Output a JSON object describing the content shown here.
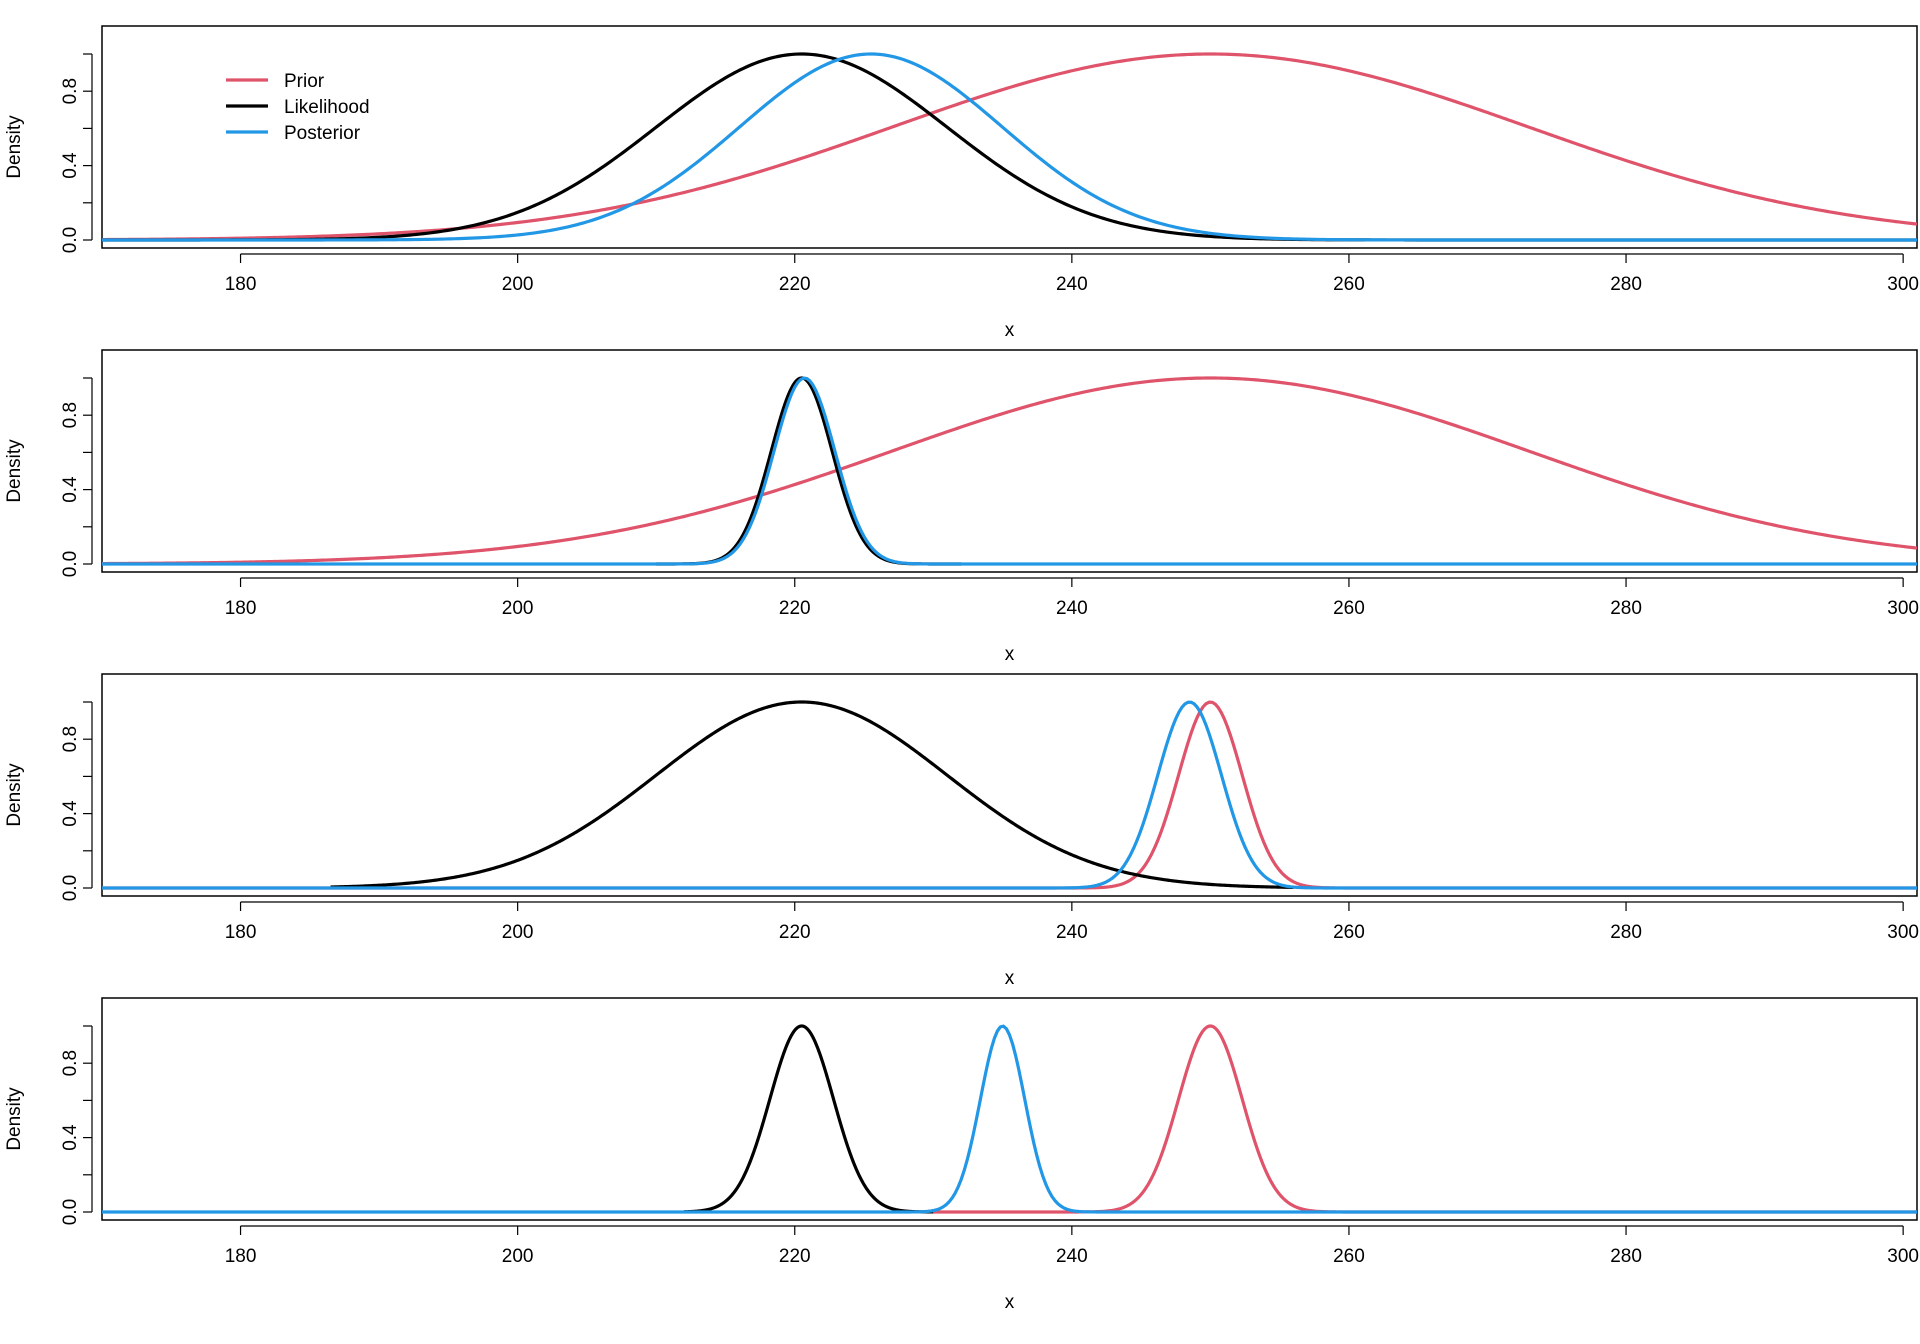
{
  "colors": {
    "prior": "#DF536B",
    "likelihood": "#000000",
    "posterior": "#2297E6"
  },
  "legend": [
    {
      "label": "Prior",
      "color_key": "prior"
    },
    {
      "label": "Likelihood",
      "color_key": "likelihood"
    },
    {
      "label": "Posterior",
      "color_key": "posterior"
    }
  ],
  "chart_data": [
    {
      "type": "line",
      "xlabel": "x",
      "ylabel": "Density",
      "xlim": [
        170,
        301
      ],
      "ylim": [
        0,
        1
      ],
      "xticks": [
        "180",
        "200",
        "220",
        "240",
        "260",
        "280",
        "300"
      ],
      "yticks": [
        "0.0",
        "0.4",
        "0.8"
      ],
      "legend_position": "top-left",
      "series": [
        {
          "name": "Prior",
          "curve": "normal",
          "mean": 250,
          "sd": 23,
          "peak": 1.0,
          "x_range": [
            170,
            301
          ]
        },
        {
          "name": "Likelihood",
          "curve": "normal",
          "mean": 220.5,
          "sd": 10.5,
          "peak": 1.0,
          "x_range": [
            170,
            301
          ]
        },
        {
          "name": "Posterior",
          "curve": "normal",
          "mean": 225.5,
          "sd": 9.5,
          "peak": 1.0,
          "x_range": [
            170,
            301
          ]
        }
      ]
    },
    {
      "type": "line",
      "xlabel": "x",
      "ylabel": "Density",
      "xlim": [
        170,
        301
      ],
      "ylim": [
        0,
        1
      ],
      "xticks": [
        "180",
        "200",
        "220",
        "240",
        "260",
        "280",
        "300"
      ],
      "yticks": [
        "0.0",
        "0.4",
        "0.8"
      ],
      "series": [
        {
          "name": "Prior",
          "curve": "normal",
          "mean": 250,
          "sd": 23,
          "peak": 1.0,
          "x_range": [
            170,
            301
          ]
        },
        {
          "name": "Likelihood",
          "curve": "normal",
          "mean": 220.5,
          "sd": 2.2,
          "peak": 1.0,
          "x_range": [
            210,
            232
          ]
        },
        {
          "name": "Posterior",
          "curve": "normal",
          "mean": 220.7,
          "sd": 2.2,
          "peak": 1.0,
          "x_range": [
            170,
            301
          ]
        }
      ]
    },
    {
      "type": "line",
      "xlabel": "x",
      "ylabel": "Density",
      "xlim": [
        170,
        301
      ],
      "ylim": [
        0,
        1
      ],
      "xticks": [
        "180",
        "200",
        "220",
        "240",
        "260",
        "280",
        "300"
      ],
      "yticks": [
        "0.0",
        "0.4",
        "0.8"
      ],
      "series": [
        {
          "name": "Prior",
          "curve": "normal",
          "mean": 250,
          "sd": 2.3,
          "peak": 1.0,
          "x_range": [
            170,
            301
          ]
        },
        {
          "name": "Likelihood",
          "curve": "normal",
          "mean": 220.5,
          "sd": 10.5,
          "peak": 1.0,
          "x_range": [
            186.5,
            256
          ]
        },
        {
          "name": "Posterior",
          "curve": "normal",
          "mean": 248.5,
          "sd": 2.3,
          "peak": 1.0,
          "x_range": [
            170,
            301
          ]
        }
      ]
    },
    {
      "type": "line",
      "xlabel": "x",
      "ylabel": "Density",
      "xlim": [
        170,
        301
      ],
      "ylim": [
        0,
        1
      ],
      "xticks": [
        "180",
        "200",
        "220",
        "240",
        "260",
        "280",
        "300"
      ],
      "yticks": [
        "0.0",
        "0.4",
        "0.8"
      ],
      "series": [
        {
          "name": "Prior",
          "curve": "normal",
          "mean": 250,
          "sd": 2.3,
          "peak": 1.0,
          "x_range": [
            230,
            301
          ]
        },
        {
          "name": "Likelihood",
          "curve": "normal",
          "mean": 220.5,
          "sd": 2.3,
          "peak": 1.0,
          "x_range": [
            212,
            230
          ]
        },
        {
          "name": "Posterior",
          "curve": "normal",
          "mean": 235,
          "sd": 1.6,
          "peak": 1.0,
          "x_range": [
            170,
            301
          ]
        }
      ]
    }
  ]
}
